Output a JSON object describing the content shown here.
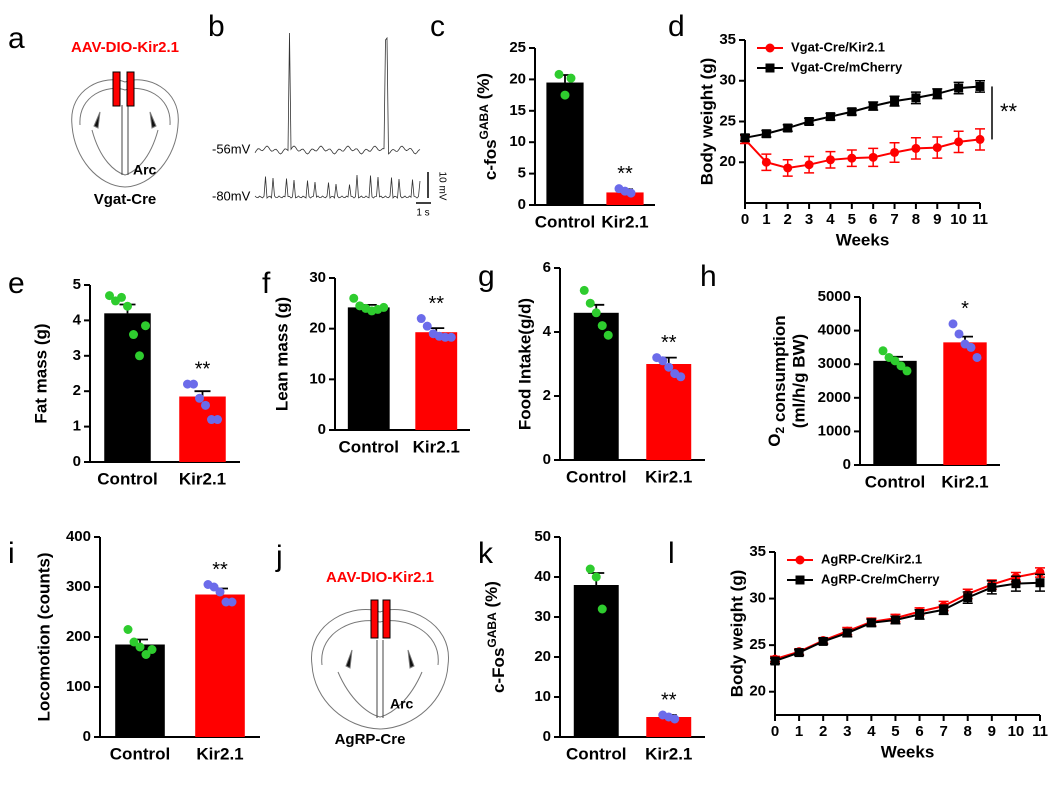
{
  "chart_data": [
    {
      "panel": "c",
      "type": "bar",
      "y_label": [
        "c-fos",
        {
          "sup": "GABA"
        },
        " (%)"
      ],
      "categories": [
        "Control",
        "Kir2.1"
      ],
      "values": [
        19.5,
        2.0
      ],
      "errors": [
        1.2,
        0.5
      ],
      "points": [
        [
          20.8,
          17.5,
          20.2
        ],
        [
          2.6,
          2.2,
          1.9
        ]
      ],
      "significance": [
        null,
        "**"
      ],
      "colors": [
        "#000000",
        "#ff0000"
      ],
      "point_colors": [
        "#2ecc2e",
        "#6b6bea"
      ],
      "ylim": [
        0,
        25
      ],
      "yticks": [
        0,
        5,
        10,
        15,
        20,
        25
      ]
    },
    {
      "panel": "d",
      "type": "line",
      "y_label": "Body weight (g)",
      "x_label": "Weeks",
      "x": [
        0,
        1,
        2,
        3,
        4,
        5,
        6,
        7,
        8,
        9,
        10,
        11
      ],
      "series": [
        {
          "name": "Vgat-Cre/Kir2.1",
          "color": "#ff0000",
          "marker": "circle",
          "values": [
            22.8,
            20.0,
            19.3,
            19.7,
            20.3,
            20.5,
            20.6,
            21.2,
            21.7,
            21.8,
            22.5,
            22.8
          ],
          "errors": [
            0.5,
            1.0,
            1.0,
            1.0,
            1.0,
            1.0,
            1.1,
            1.2,
            1.3,
            1.3,
            1.3,
            1.3
          ]
        },
        {
          "name": "Vgat-Cre/mCherry",
          "color": "#000000",
          "marker": "square",
          "values": [
            23.0,
            23.5,
            24.2,
            25.0,
            25.6,
            26.2,
            26.9,
            27.5,
            27.9,
            28.4,
            29.1,
            29.3
          ],
          "errors": [
            0.4,
            0.4,
            0.4,
            0.4,
            0.4,
            0.4,
            0.5,
            0.6,
            0.7,
            0.6,
            0.7,
            0.7
          ]
        }
      ],
      "annotation": "**",
      "legend": "upper left",
      "xlim": [
        0,
        11
      ],
      "xticks": [
        0,
        1,
        2,
        3,
        4,
        5,
        6,
        7,
        8,
        9,
        10,
        11
      ],
      "ylim": [
        15,
        35
      ],
      "yticks": [
        20,
        25,
        30,
        35
      ]
    },
    {
      "panel": "e",
      "type": "bar",
      "y_label": "Fat mass (g)",
      "categories": [
        "Control",
        "Kir2.1"
      ],
      "values": [
        4.2,
        1.85
      ],
      "errors": [
        0.25,
        0.15
      ],
      "points": [
        [
          4.7,
          4.55,
          4.65,
          4.4,
          3.6,
          3.0,
          3.85
        ],
        [
          2.2,
          2.2,
          1.8,
          1.6,
          1.2,
          1.2
        ]
      ],
      "significance": [
        null,
        "**"
      ],
      "colors": [
        "#000000",
        "#ff0000"
      ],
      "point_colors": [
        "#2ecc2e",
        "#6b6bea"
      ],
      "ylim": [
        0,
        5
      ],
      "yticks": [
        0,
        1,
        2,
        3,
        4,
        5
      ]
    },
    {
      "panel": "f",
      "type": "bar",
      "y_label": "Lean mass (g)",
      "categories": [
        "Control",
        "Kir2.1"
      ],
      "values": [
        24.2,
        19.3
      ],
      "errors": [
        0.5,
        0.8
      ],
      "points": [
        [
          26.0,
          24.5,
          24.0,
          23.5,
          23.8,
          24.2
        ],
        [
          22.0,
          20.5,
          19.0,
          18.5,
          18.3,
          18.3
        ]
      ],
      "significance": [
        null,
        "**"
      ],
      "colors": [
        "#000000",
        "#ff0000"
      ],
      "point_colors": [
        "#2ecc2e",
        "#6b6bea"
      ],
      "ylim": [
        0,
        30
      ],
      "yticks": [
        0,
        10,
        20,
        30
      ]
    },
    {
      "panel": "g",
      "type": "bar",
      "y_label": "Food Intake(g/d)",
      "categories": [
        "Control",
        "Kir2.1"
      ],
      "values": [
        4.6,
        3.0
      ],
      "errors": [
        0.25,
        0.2
      ],
      "points": [
        [
          5.3,
          4.9,
          4.6,
          4.2,
          3.9
        ],
        [
          3.2,
          3.1,
          2.9,
          2.7,
          2.6
        ]
      ],
      "significance": [
        null,
        "**"
      ],
      "colors": [
        "#000000",
        "#ff0000"
      ],
      "point_colors": [
        "#2ecc2e",
        "#6b6bea"
      ],
      "ylim": [
        0,
        6
      ],
      "yticks": [
        0,
        2,
        4,
        6
      ]
    },
    {
      "panel": "h",
      "type": "bar",
      "y_label": [
        "O",
        {
          "sub": "2"
        },
        " consumption"
      ],
      "y_label_2": "(ml/h/g BW)",
      "categories": [
        "Control",
        "Kir2.1"
      ],
      "values": [
        3100,
        3650
      ],
      "errors": [
        120,
        170
      ],
      "points": [
        [
          3400,
          3200,
          3100,
          2950,
          2800
        ],
        [
          4200,
          3900,
          3600,
          3500,
          3200
        ]
      ],
      "significance": [
        null,
        "*"
      ],
      "colors": [
        "#000000",
        "#ff0000"
      ],
      "point_colors": [
        "#2ecc2e",
        "#6b6bea"
      ],
      "ylim": [
        0,
        5000
      ],
      "yticks": [
        0,
        1000,
        2000,
        3000,
        4000,
        5000
      ]
    },
    {
      "panel": "i",
      "type": "bar",
      "y_label": "Locomotion (counts)",
      "categories": [
        "Control",
        "Kir2.1"
      ],
      "values": [
        185,
        285
      ],
      "errors": [
        10,
        12
      ],
      "points": [
        [
          215,
          190,
          180,
          165,
          175
        ],
        [
          305,
          300,
          290,
          270,
          270
        ]
      ],
      "significance": [
        null,
        "**"
      ],
      "colors": [
        "#000000",
        "#ff0000"
      ],
      "point_colors": [
        "#2ecc2e",
        "#6b6bea"
      ],
      "ylim": [
        0,
        400
      ],
      "yticks": [
        0,
        100,
        200,
        300,
        400
      ]
    },
    {
      "panel": "k",
      "type": "bar",
      "y_label": [
        "c-Fos",
        {
          "sup": "GABA"
        },
        " (%)"
      ],
      "categories": [
        "Control",
        "Kir2.1"
      ],
      "values": [
        38,
        5
      ],
      "errors": [
        3,
        0.5
      ],
      "points": [
        [
          42,
          40,
          32
        ],
        [
          5.5,
          5,
          4.5
        ]
      ],
      "significance": [
        null,
        "**"
      ],
      "colors": [
        "#000000",
        "#ff0000"
      ],
      "point_colors": [
        "#2ecc2e",
        "#6b6bea"
      ],
      "ylim": [
        0,
        50
      ],
      "yticks": [
        0,
        10,
        20,
        30,
        40,
        50
      ]
    },
    {
      "panel": "l",
      "type": "line",
      "y_label": "Body weight (g)",
      "x_label": "Weeks",
      "x": [
        0,
        1,
        2,
        3,
        4,
        5,
        6,
        7,
        8,
        9,
        10,
        11
      ],
      "series": [
        {
          "name": "AgRP-Cre/Kir2.1",
          "color": "#ff0000",
          "marker": "circle",
          "values": [
            23.5,
            24.3,
            25.5,
            26.5,
            27.5,
            27.9,
            28.6,
            29.2,
            30.5,
            31.5,
            32.3,
            32.8
          ],
          "errors": [
            0.3,
            0.3,
            0.3,
            0.4,
            0.4,
            0.4,
            0.4,
            0.5,
            0.5,
            0.5,
            0.5,
            0.5
          ]
        },
        {
          "name": "AgRP-Cre/mCherry",
          "color": "#000000",
          "marker": "square",
          "values": [
            23.3,
            24.2,
            25.4,
            26.3,
            27.4,
            27.7,
            28.3,
            28.8,
            30.1,
            31.2,
            31.6,
            31.7
          ],
          "errors": [
            0.3,
            0.3,
            0.3,
            0.4,
            0.4,
            0.4,
            0.5,
            0.5,
            0.6,
            0.7,
            0.8,
            0.9
          ]
        }
      ],
      "legend": "upper left",
      "xlim": [
        0,
        11
      ],
      "xticks": [
        0,
        1,
        2,
        3,
        4,
        5,
        6,
        7,
        8,
        9,
        10,
        11
      ],
      "ylim": [
        17.5,
        35
      ],
      "yticks": [
        20,
        25,
        30,
        35
      ]
    }
  ],
  "diagrams": [
    {
      "panel": "a",
      "virus": "AAV-DIO-Kir2.1",
      "region": "Arc",
      "mouse": "Vgat-Cre"
    },
    {
      "panel": "b",
      "trace_labels": [
        "-56mV",
        "-80mV"
      ],
      "scale_y": "10 mV",
      "scale_x": "1 s"
    },
    {
      "panel": "j",
      "virus": "AAV-DIO-Kir2.1",
      "region": "Arc",
      "mouse": "AgRP-Cre"
    }
  ]
}
